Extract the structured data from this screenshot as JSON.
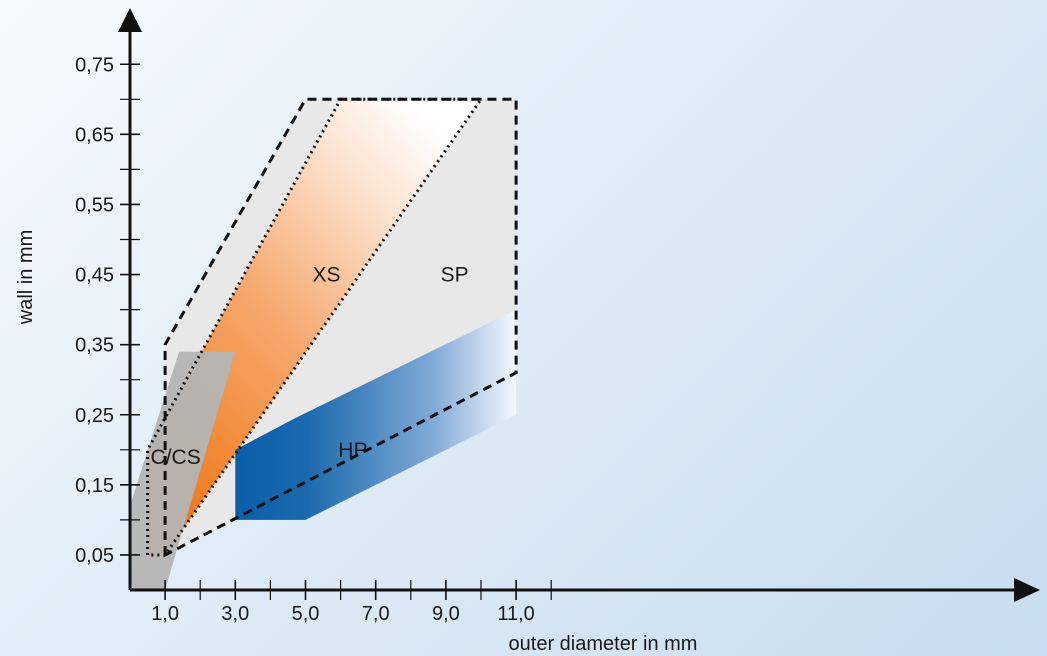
{
  "chart_data": {
    "type": "area",
    "title": "",
    "xlabel": "outer diameter in mm",
    "ylabel": "wall in mm",
    "xlim": [
      0,
      12.7
    ],
    "ylim": [
      0,
      0.82
    ],
    "x_ticks": [
      "1,0",
      "3,0",
      "5,0",
      "7,0",
      "9,0",
      "11,0"
    ],
    "x_tick_values": [
      1,
      3,
      5,
      7,
      9,
      11
    ],
    "x_minor_ticks": [
      2,
      4,
      6,
      8,
      10,
      12
    ],
    "y_ticks": [
      "0,05",
      "0,15",
      "0,25",
      "0,35",
      "0,45",
      "0,55",
      "0,65",
      "0,75"
    ],
    "y_tick_values": [
      0.05,
      0.15,
      0.25,
      0.35,
      0.45,
      0.55,
      0.65,
      0.75
    ],
    "y_minor_ticks": [
      0.1,
      0.2,
      0.3,
      0.4,
      0.5,
      0.6,
      0.7
    ],
    "grid": false,
    "regions": [
      {
        "name": "SP",
        "style": "dashed-outline",
        "color": "#e8e8e8",
        "polygon": [
          [
            1.0,
            0.05
          ],
          [
            1.0,
            0.35
          ],
          [
            5.0,
            0.7
          ],
          [
            11.0,
            0.7
          ],
          [
            11.0,
            0.31
          ],
          [
            1.0,
            0.05
          ]
        ]
      },
      {
        "name": "XS",
        "style": "dotted-outline",
        "color": "#f08a2a",
        "polygon": [
          [
            0.5,
            0.05
          ],
          [
            0.5,
            0.2
          ],
          [
            6.0,
            0.7
          ],
          [
            10.0,
            0.7
          ],
          [
            1.0,
            0.05
          ]
        ]
      },
      {
        "name": "C/CS",
        "style": "solid",
        "color": "#b4b4b4",
        "polygon": [
          [
            0.0,
            0.0
          ],
          [
            1.0,
            0.0
          ],
          [
            3.0,
            0.34
          ],
          [
            1.4,
            0.34
          ],
          [
            0.0,
            0.12
          ]
        ]
      },
      {
        "name": "HP",
        "style": "solid",
        "color": "#1565a8",
        "polygon": [
          [
            3.0,
            0.1
          ],
          [
            5.0,
            0.1
          ],
          [
            11.0,
            0.25
          ],
          [
            11.0,
            0.4
          ],
          [
            4.7,
            0.245
          ],
          [
            3.0,
            0.2
          ]
        ]
      }
    ],
    "labels": [
      {
        "text": "XS",
        "x": 5.6,
        "y": 0.44
      },
      {
        "text": "SP",
        "x": 9.25,
        "y": 0.44
      },
      {
        "text": "C/CS",
        "x": 1.3,
        "y": 0.18
      },
      {
        "text": "HP",
        "x": 6.35,
        "y": 0.19
      }
    ]
  }
}
